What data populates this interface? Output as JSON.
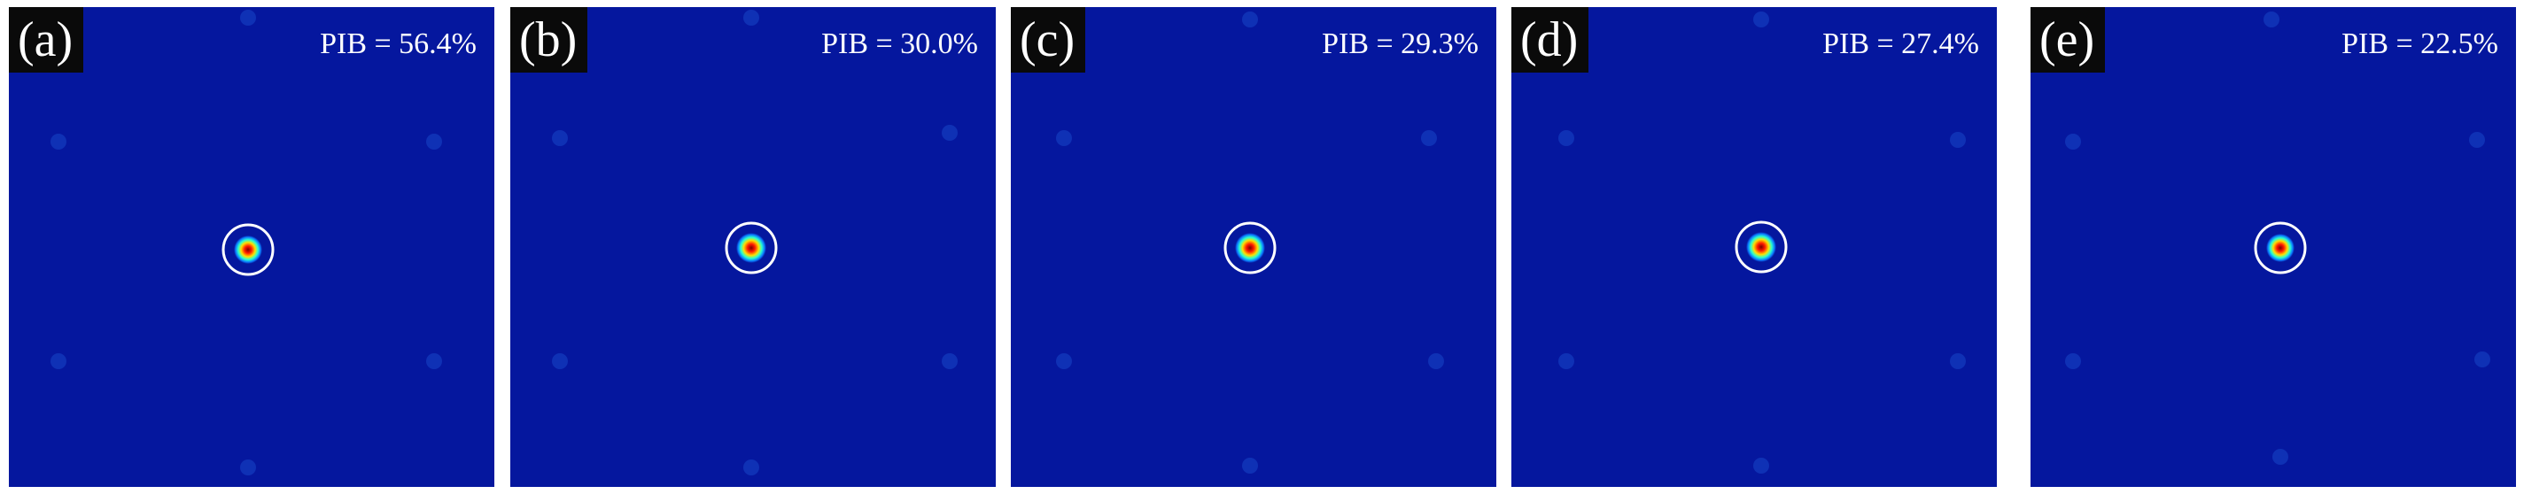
{
  "panels": [
    {
      "label": "(a)",
      "pib": "PIB = 56.4%",
      "pib_value": 56.4
    },
    {
      "label": "(b)",
      "pib": "PIB = 30.0%",
      "pib_value": 30.0
    },
    {
      "label": "(c)",
      "pib": "PIB = 29.3%",
      "pib_value": 29.3
    },
    {
      "label": "(d)",
      "pib": "PIB = 27.4%",
      "pib_value": 27.4
    },
    {
      "label": "(e)",
      "pib": "PIB = 22.5%",
      "pib_value": 22.5
    }
  ],
  "colors": {
    "background": "#05179e",
    "speckle": "#1236b8",
    "ring": "#ffffff",
    "label_bg": "#0a0a0a"
  }
}
